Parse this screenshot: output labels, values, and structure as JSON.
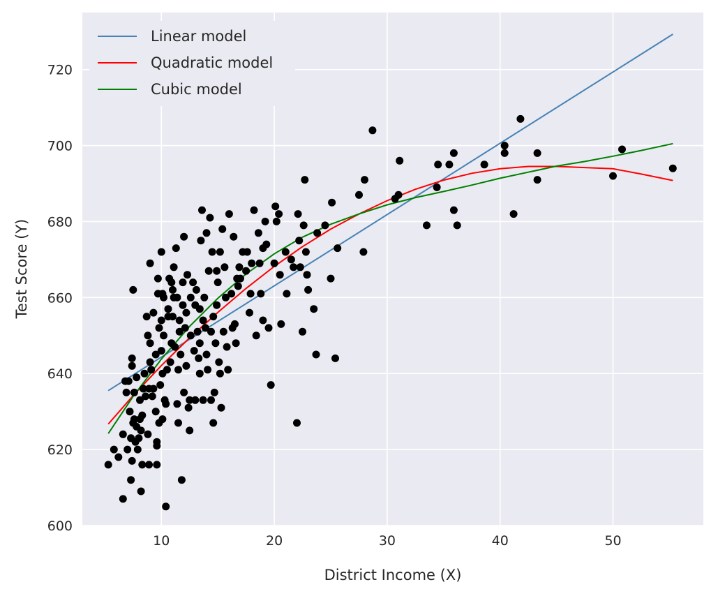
{
  "chart_data": {
    "type": "scatter",
    "title": "",
    "xlabel": "District Income (X)",
    "ylabel": "Test Score (Y)",
    "xlim": [
      3,
      58
    ],
    "ylim": [
      600,
      735
    ],
    "xticks": [
      10,
      20,
      30,
      40,
      50
    ],
    "yticks": [
      600,
      620,
      640,
      660,
      680,
      700,
      720
    ],
    "grid": true,
    "legend_position": "top-left",
    "points_color": "#000000",
    "points": [
      [
        5.3,
        616
      ],
      [
        5.8,
        620
      ],
      [
        6.2,
        618
      ],
      [
        6.6,
        607
      ],
      [
        6.6,
        624
      ],
      [
        6.9,
        635
      ],
      [
        7.0,
        620
      ],
      [
        7.1,
        638
      ],
      [
        7.2,
        630
      ],
      [
        7.3,
        623
      ],
      [
        7.3,
        612
      ],
      [
        7.4,
        644
      ],
      [
        7.4,
        617
      ],
      [
        7.4,
        642
      ],
      [
        7.5,
        662
      ],
      [
        7.5,
        627
      ],
      [
        7.6,
        628
      ],
      [
        7.6,
        635
      ],
      [
        7.7,
        622
      ],
      [
        7.8,
        639
      ],
      [
        7.9,
        620
      ],
      [
        8.0,
        623
      ],
      [
        8.1,
        628
      ],
      [
        8.1,
        633
      ],
      [
        8.2,
        609
      ],
      [
        8.2,
        625
      ],
      [
        8.3,
        616
      ],
      [
        8.3,
        629
      ],
      [
        8.4,
        636
      ],
      [
        8.5,
        640
      ],
      [
        8.6,
        634
      ],
      [
        8.7,
        655
      ],
      [
        8.8,
        650
      ],
      [
        8.8,
        624
      ],
      [
        8.9,
        616
      ],
      [
        9.0,
        643
      ],
      [
        9.0,
        648
      ],
      [
        9.0,
        669
      ],
      [
        9.1,
        641
      ],
      [
        9.2,
        634
      ],
      [
        9.3,
        636
      ],
      [
        9.5,
        630
      ],
      [
        9.5,
        645
      ],
      [
        9.6,
        622
      ],
      [
        9.6,
        621
      ],
      [
        9.6,
        616
      ],
      [
        9.7,
        661
      ],
      [
        9.8,
        652
      ],
      [
        9.8,
        627
      ],
      [
        9.9,
        637
      ],
      [
        10.0,
        646
      ],
      [
        10.0,
        654
      ],
      [
        10.0,
        672
      ],
      [
        10.1,
        661
      ],
      [
        10.1,
        640
      ],
      [
        10.1,
        628
      ],
      [
        10.2,
        650
      ],
      [
        10.2,
        660
      ],
      [
        10.4,
        605
      ],
      [
        10.4,
        632
      ],
      [
        10.5,
        641
      ],
      [
        10.6,
        655
      ],
      [
        10.6,
        657
      ],
      [
        10.7,
        665
      ],
      [
        10.8,
        643
      ],
      [
        10.9,
        648
      ],
      [
        11.0,
        655
      ],
      [
        11.1,
        660
      ],
      [
        11.1,
        668
      ],
      [
        11.2,
        647
      ],
      [
        11.3,
        673
      ],
      [
        11.4,
        632
      ],
      [
        11.4,
        660
      ],
      [
        11.5,
        627
      ],
      [
        11.5,
        641
      ],
      [
        11.6,
        651
      ],
      [
        11.7,
        645
      ],
      [
        11.8,
        612
      ],
      [
        11.9,
        658
      ],
      [
        11.9,
        664
      ],
      [
        12.0,
        676
      ],
      [
        12.0,
        635
      ],
      [
        12.1,
        652
      ],
      [
        12.2,
        642
      ],
      [
        12.2,
        656
      ],
      [
        12.4,
        631
      ],
      [
        12.5,
        625
      ],
      [
        12.5,
        633
      ],
      [
        12.6,
        660
      ],
      [
        12.6,
        650
      ],
      [
        12.8,
        664
      ],
      [
        13.0,
        658
      ],
      [
        13.0,
        633
      ],
      [
        13.1,
        662
      ],
      [
        13.2,
        651
      ],
      [
        13.3,
        644
      ],
      [
        13.4,
        640
      ],
      [
        13.4,
        657
      ],
      [
        13.5,
        675
      ],
      [
        13.6,
        683
      ],
      [
        13.7,
        633
      ],
      [
        13.8,
        660
      ],
      [
        13.9,
        652
      ],
      [
        14.0,
        677
      ],
      [
        14.0,
        645
      ],
      [
        14.1,
        641
      ],
      [
        14.2,
        667
      ],
      [
        14.3,
        681
      ],
      [
        14.4,
        633
      ],
      [
        14.5,
        672
      ],
      [
        14.6,
        655
      ],
      [
        14.6,
        627
      ],
      [
        14.7,
        635
      ],
      [
        14.8,
        648
      ],
      [
        14.9,
        658
      ],
      [
        15.0,
        664
      ],
      [
        15.1,
        643
      ],
      [
        15.2,
        672
      ],
      [
        15.3,
        631
      ],
      [
        15.4,
        678
      ],
      [
        15.5,
        651
      ],
      [
        15.6,
        668
      ],
      [
        15.8,
        647
      ],
      [
        15.9,
        641
      ],
      [
        16.0,
        682
      ],
      [
        16.2,
        661
      ],
      [
        16.4,
        676
      ],
      [
        16.5,
        653
      ],
      [
        16.6,
        648
      ],
      [
        16.8,
        663
      ],
      [
        17.0,
        665
      ],
      [
        17.2,
        672
      ],
      [
        17.5,
        667
      ],
      [
        17.8,
        656
      ],
      [
        18.0,
        669
      ],
      [
        18.2,
        683
      ],
      [
        18.4,
        650
      ],
      [
        18.6,
        677
      ],
      [
        18.8,
        661
      ],
      [
        19.0,
        673
      ],
      [
        19.2,
        680
      ],
      [
        19.5,
        652
      ],
      [
        19.7,
        637
      ],
      [
        20.0,
        669
      ],
      [
        20.1,
        684
      ],
      [
        20.2,
        680
      ],
      [
        20.4,
        682
      ],
      [
        20.6,
        653
      ],
      [
        21.0,
        672
      ],
      [
        21.1,
        661
      ],
      [
        21.5,
        670
      ],
      [
        22.0,
        627
      ],
      [
        22.1,
        682
      ],
      [
        22.3,
        668
      ],
      [
        22.5,
        651
      ],
      [
        22.6,
        679
      ],
      [
        22.7,
        691
      ],
      [
        22.8,
        672
      ],
      [
        22.9,
        666
      ],
      [
        23.0,
        662
      ],
      [
        23.5,
        657
      ],
      [
        23.7,
        645
      ],
      [
        23.8,
        677
      ],
      [
        24.5,
        679
      ],
      [
        25.0,
        665
      ],
      [
        25.1,
        685
      ],
      [
        25.4,
        644
      ],
      [
        25.6,
        673
      ],
      [
        27.5,
        687
      ],
      [
        27.9,
        672
      ],
      [
        28.0,
        691
      ],
      [
        28.7,
        704
      ],
      [
        30.7,
        686
      ],
      [
        31.0,
        687
      ],
      [
        31.1,
        696
      ],
      [
        33.5,
        679
      ],
      [
        34.4,
        689
      ],
      [
        34.5,
        695
      ],
      [
        35.5,
        695
      ],
      [
        35.9,
        683
      ],
      [
        35.9,
        698
      ],
      [
        36.2,
        679
      ],
      [
        38.6,
        695
      ],
      [
        40.4,
        698
      ],
      [
        40.4,
        700
      ],
      [
        41.2,
        682
      ],
      [
        41.8,
        707
      ],
      [
        43.3,
        698
      ],
      [
        43.3,
        691
      ],
      [
        50.0,
        692
      ],
      [
        50.8,
        699
      ],
      [
        55.3,
        694
      ],
      [
        6.8,
        638
      ],
      [
        7.8,
        626
      ],
      [
        8.9,
        636
      ],
      [
        9.3,
        656
      ],
      [
        10.3,
        633
      ],
      [
        10.9,
        664
      ],
      [
        11.6,
        654
      ],
      [
        12.3,
        666
      ],
      [
        13.7,
        654
      ],
      [
        14.4,
        651
      ],
      [
        15.7,
        660
      ],
      [
        16.7,
        665
      ],
      [
        17.6,
        672
      ],
      [
        18.7,
        669
      ],
      [
        19.3,
        674
      ],
      [
        20.5,
        666
      ],
      [
        21.7,
        668
      ],
      [
        22.2,
        675
      ],
      [
        12.9,
        646
      ],
      [
        14.9,
        667
      ],
      [
        16.3,
        652
      ],
      [
        17.9,
        661
      ],
      [
        19.0,
        654
      ],
      [
        9.7,
        665
      ],
      [
        11.0,
        662
      ],
      [
        13.4,
        648
      ],
      [
        15.2,
        640
      ],
      [
        16.9,
        668
      ]
    ],
    "series": [
      {
        "name": "Linear model",
        "color": "#4682b4",
        "x": [
          5.3,
          55.3
        ],
        "y": [
          635.5,
          729.3
        ]
      },
      {
        "name": "Quadratic model",
        "color": "#ff0000",
        "x": [
          5.3,
          7.5,
          10,
          12.5,
          15,
          17.5,
          20,
          22.5,
          25,
          27.5,
          30,
          32.5,
          35,
          37.5,
          40,
          42.5,
          45,
          47.5,
          50,
          52.5,
          55.3
        ],
        "y": [
          626.7,
          634.2,
          642.1,
          649.4,
          656.1,
          662.4,
          668.2,
          673.4,
          678.0,
          682.0,
          685.5,
          688.5,
          690.9,
          692.7,
          693.9,
          694.5,
          694.5,
          694.2,
          693.9,
          692.5,
          690.8
        ]
      },
      {
        "name": "Cubic model",
        "color": "#008000",
        "x": [
          5.3,
          7.5,
          10,
          12.5,
          15,
          17.5,
          20,
          22.5,
          25,
          27.5,
          30,
          32.5,
          35,
          37.5,
          40,
          42.5,
          45,
          47.5,
          50,
          52.5,
          55.3
        ],
        "y": [
          624.2,
          634.0,
          643.8,
          652.4,
          659.8,
          666.2,
          671.5,
          675.9,
          679.3,
          682.0,
          684.4,
          686.3,
          687.9,
          689.6,
          691.4,
          693.0,
          694.6,
          695.8,
          697.2,
          698.7,
          700.5
        ]
      }
    ]
  }
}
